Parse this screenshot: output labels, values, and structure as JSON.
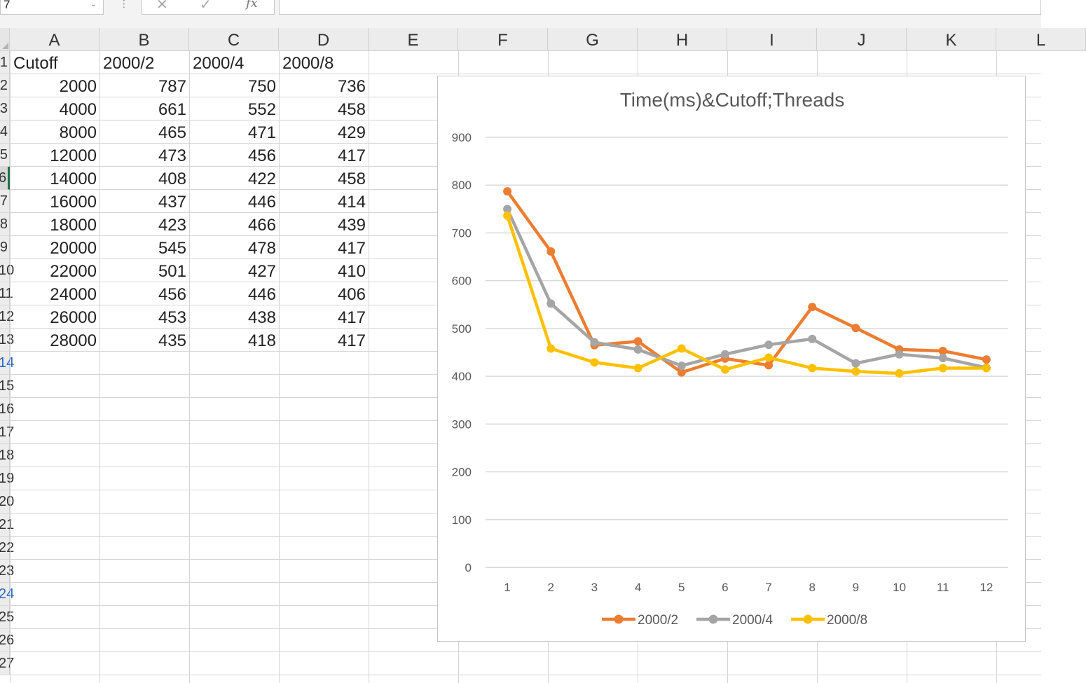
{
  "formula_bar": {
    "name_box_value": "7",
    "cancel_icon": "✕",
    "enter_icon": "✓",
    "fx_label": "fx",
    "formula_value": ""
  },
  "sheet": {
    "columns": [
      "A",
      "B",
      "C",
      "D",
      "E",
      "F",
      "G",
      "H",
      "I",
      "J",
      "K",
      "L"
    ],
    "row_numbers": [
      "1",
      "2",
      "3",
      "4",
      "5",
      "6",
      "7",
      "8",
      "9",
      "10",
      "11",
      "12",
      "13",
      "14",
      "15",
      "16",
      "17",
      "18",
      "19",
      "20",
      "21",
      "22",
      "23",
      "24",
      "25",
      "26",
      "27"
    ],
    "selected_row": "6",
    "header_row": [
      "Cutoff",
      "2000/2",
      "2000/4",
      "2000/8"
    ],
    "rows": [
      [
        "2000",
        "787",
        "750",
        "736"
      ],
      [
        "4000",
        "661",
        "552",
        "458"
      ],
      [
        "8000",
        "465",
        "471",
        "429"
      ],
      [
        "12000",
        "473",
        "456",
        "417"
      ],
      [
        "14000",
        "408",
        "422",
        "458"
      ],
      [
        "16000",
        "437",
        "446",
        "414"
      ],
      [
        "18000",
        "423",
        "466",
        "439"
      ],
      [
        "20000",
        "545",
        "478",
        "417"
      ],
      [
        "22000",
        "501",
        "427",
        "410"
      ],
      [
        "24000",
        "456",
        "446",
        "406"
      ],
      [
        "26000",
        "453",
        "438",
        "417"
      ],
      [
        "28000",
        "435",
        "418",
        "417"
      ]
    ]
  },
  "chart_data": {
    "type": "line",
    "title": "Time(ms)&Cutoff;Threads",
    "x": [
      "1",
      "2",
      "3",
      "4",
      "5",
      "6",
      "7",
      "8",
      "9",
      "10",
      "11",
      "12"
    ],
    "ylim": [
      0,
      900
    ],
    "yticks": [
      0,
      100,
      200,
      300,
      400,
      500,
      600,
      700,
      800,
      900
    ],
    "grid": true,
    "legend_position": "bottom",
    "series": [
      {
        "name": "2000/2",
        "color": "#ed7d31",
        "values": [
          787,
          661,
          465,
          473,
          408,
          437,
          423,
          545,
          501,
          456,
          453,
          435
        ]
      },
      {
        "name": "2000/4",
        "color": "#a5a5a5",
        "values": [
          750,
          552,
          471,
          456,
          422,
          446,
          466,
          478,
          427,
          446,
          438,
          418
        ]
      },
      {
        "name": "2000/8",
        "color": "#ffc000",
        "values": [
          736,
          458,
          429,
          417,
          458,
          414,
          439,
          417,
          410,
          406,
          417,
          417
        ]
      }
    ]
  }
}
